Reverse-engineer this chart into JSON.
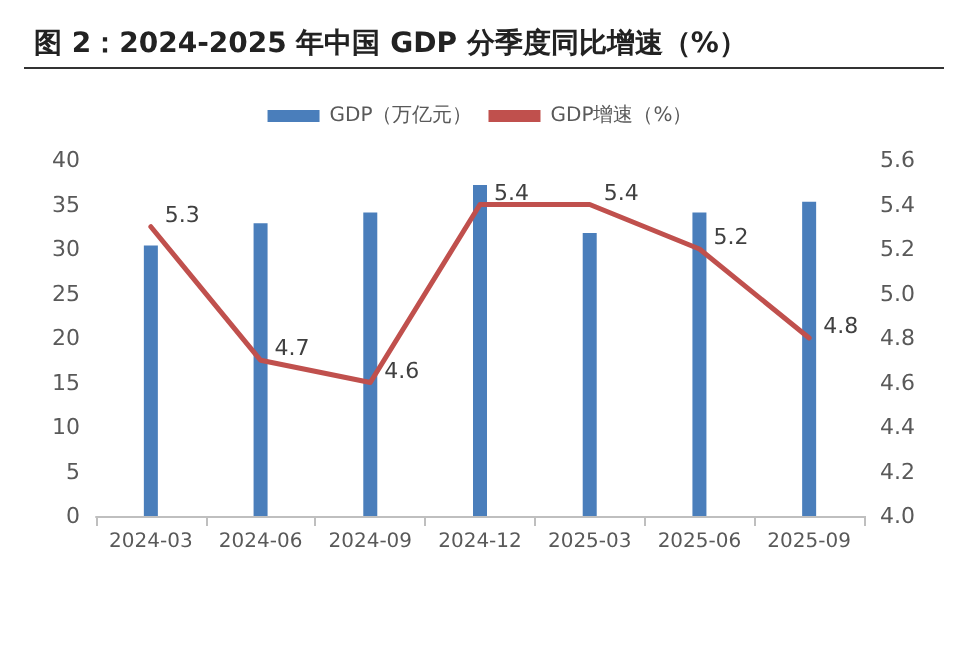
{
  "chart_data": {
    "type": "bar",
    "title": "图 2：2024-2025 年中国 GDP 分季度同比增速（%）",
    "categories": [
      "2024-03",
      "2024-06",
      "2024-09",
      "2024-12",
      "2025-03",
      "2025-06",
      "2025-09"
    ],
    "series": [
      {
        "name": "GDP（万亿元）",
        "color": "#4a7ebb",
        "values": [
          30.4,
          32.9,
          34.1,
          37.2,
          31.8,
          34.1,
          35.3
        ]
      },
      {
        "name": "GDP增速（%）",
        "type": "line",
        "axis": "y2",
        "color": "#c0504d",
        "values": [
          5.3,
          4.7,
          4.6,
          5.4,
          5.4,
          5.2,
          4.8
        ],
        "value_labels": [
          "5.3",
          "4.7",
          "4.6",
          "5.4",
          "5.4",
          "5.2",
          "4.8"
        ]
      }
    ],
    "ylim": [
      0,
      40
    ],
    "yticks": [
      0,
      5,
      10,
      15,
      20,
      25,
      30,
      35,
      40
    ],
    "y2lim": [
      4.0,
      5.6
    ],
    "y2ticks": [
      {
        "value": 4.0,
        "label": "4.0"
      },
      4.2,
      4.4,
      4.6,
      4.8,
      {
        "value": 5.0,
        "label": "5.0"
      },
      5.2,
      5.4,
      5.6
    ],
    "grid": false,
    "legend": "top",
    "marker": "none",
    "line_style": "solid"
  }
}
